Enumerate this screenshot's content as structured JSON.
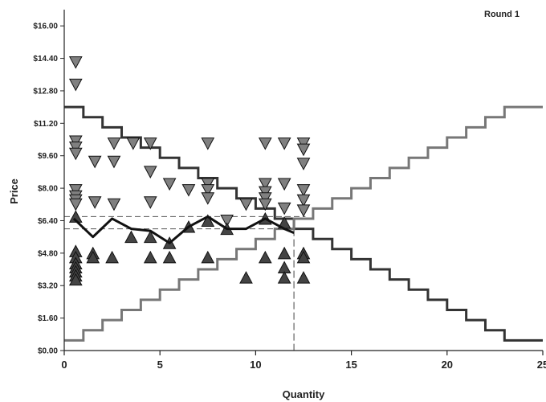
{
  "chart_data": {
    "type": "scatter",
    "title": "Round 1",
    "xlabel": "Quantity",
    "ylabel": "Price",
    "xlim": [
      0,
      25
    ],
    "ylim": [
      0,
      16.8
    ],
    "xticks": [
      0,
      5,
      10,
      15,
      20,
      25
    ],
    "yticks": [
      "$0.00",
      "$1.60",
      "$3.20",
      "$4.80",
      "$6.40",
      "$8.00",
      "$9.60",
      "$11.20",
      "$12.80",
      "$14.40",
      "$16.00"
    ],
    "ytick_values": [
      0,
      1.6,
      3.2,
      4.8,
      6.4,
      8.0,
      9.6,
      11.2,
      12.8,
      14.4,
      16.0
    ],
    "grid": false,
    "colors": {
      "demand": "#333333",
      "supply": "#777777",
      "trades": "#111111",
      "asks": "#808080",
      "bids": "#444444"
    },
    "series": [
      {
        "kind": "step",
        "role": "demand",
        "x": [
          0,
          1,
          2,
          3,
          4,
          5,
          6,
          7,
          8,
          9,
          10,
          11,
          12,
          13,
          14,
          15,
          16,
          17,
          18,
          19,
          20,
          21,
          22,
          23,
          24
        ],
        "values": [
          12.0,
          11.5,
          11.0,
          10.5,
          10.0,
          9.5,
          9.0,
          8.5,
          8.0,
          7.5,
          7.0,
          6.5,
          6.0,
          5.5,
          5.0,
          4.5,
          4.0,
          3.5,
          3.0,
          2.5,
          2.0,
          1.5,
          1.0,
          0.5,
          0.5
        ]
      },
      {
        "kind": "step",
        "role": "supply",
        "x": [
          0,
          1,
          2,
          3,
          4,
          5,
          6,
          7,
          8,
          9,
          10,
          11,
          12,
          13,
          14,
          15,
          16,
          17,
          18,
          19,
          20,
          21,
          22,
          23,
          24
        ],
        "values": [
          0.5,
          1.0,
          1.5,
          2.0,
          2.5,
          3.0,
          3.5,
          4.0,
          4.5,
          5.0,
          5.5,
          6.0,
          6.5,
          7.0,
          7.5,
          8.0,
          8.5,
          9.0,
          9.5,
          10.0,
          10.5,
          11.0,
          11.5,
          12.0,
          12.0
        ]
      },
      {
        "kind": "line",
        "role": "trades",
        "x": [
          0.5,
          1.5,
          2.5,
          3.5,
          4.5,
          5.5,
          6.5,
          7.5,
          8.5,
          9.5,
          10.5,
          11.5,
          12.0
        ],
        "values": [
          6.5,
          5.6,
          6.5,
          6.0,
          5.9,
          5.3,
          6.1,
          6.6,
          6.0,
          6.0,
          6.5,
          6.0,
          5.8
        ]
      },
      {
        "kind": "down-triangle",
        "role": "asks",
        "x": [
          0.6,
          0.6,
          0.6,
          0.6,
          0.6,
          0.6,
          0.6,
          0.6,
          0.6,
          1.6,
          1.6,
          2.6,
          2.6,
          2.6,
          3.6,
          4.5,
          4.5,
          4.5,
          5.5,
          6.5,
          7.5,
          7.5,
          7.5,
          7.5,
          8.5,
          9.5,
          10.5,
          10.5,
          10.5,
          10.5,
          10.5,
          11.5,
          11.5,
          11.5,
          12.5,
          12.5,
          12.5,
          12.5,
          12.5,
          12.5
        ],
        "values": [
          14.2,
          13.1,
          10.3,
          10.0,
          9.7,
          7.9,
          7.6,
          7.4,
          7.2,
          9.3,
          7.3,
          10.2,
          9.3,
          7.2,
          10.2,
          10.2,
          8.8,
          7.3,
          8.2,
          7.9,
          10.2,
          8.2,
          7.9,
          7.5,
          6.4,
          7.2,
          10.2,
          8.2,
          7.8,
          7.5,
          7.2,
          10.2,
          8.2,
          7.0,
          10.2,
          9.9,
          9.2,
          7.9,
          7.4,
          6.9
        ]
      },
      {
        "kind": "up-triangle",
        "role": "bids",
        "x": [
          0.6,
          0.6,
          0.6,
          0.6,
          0.6,
          0.6,
          0.6,
          0.6,
          1.5,
          1.5,
          2.5,
          3.5,
          4.5,
          4.5,
          5.5,
          5.5,
          6.5,
          7.5,
          7.5,
          8.5,
          9.5,
          10.5,
          10.5,
          11.5,
          11.5,
          11.5,
          11.5,
          12.5,
          12.5,
          12.5
        ],
        "values": [
          6.6,
          4.9,
          4.6,
          4.3,
          4.1,
          3.9,
          3.7,
          3.5,
          4.8,
          4.6,
          4.6,
          5.6,
          5.6,
          4.6,
          5.3,
          4.6,
          6.1,
          6.4,
          4.6,
          6.0,
          3.6,
          6.5,
          4.6,
          6.3,
          4.8,
          4.1,
          3.6,
          4.8,
          4.6,
          3.6
        ]
      }
    ],
    "annotations": {
      "equilibrium_quantity": 12,
      "reference_prices": [
        6.6,
        6.0
      ]
    }
  }
}
